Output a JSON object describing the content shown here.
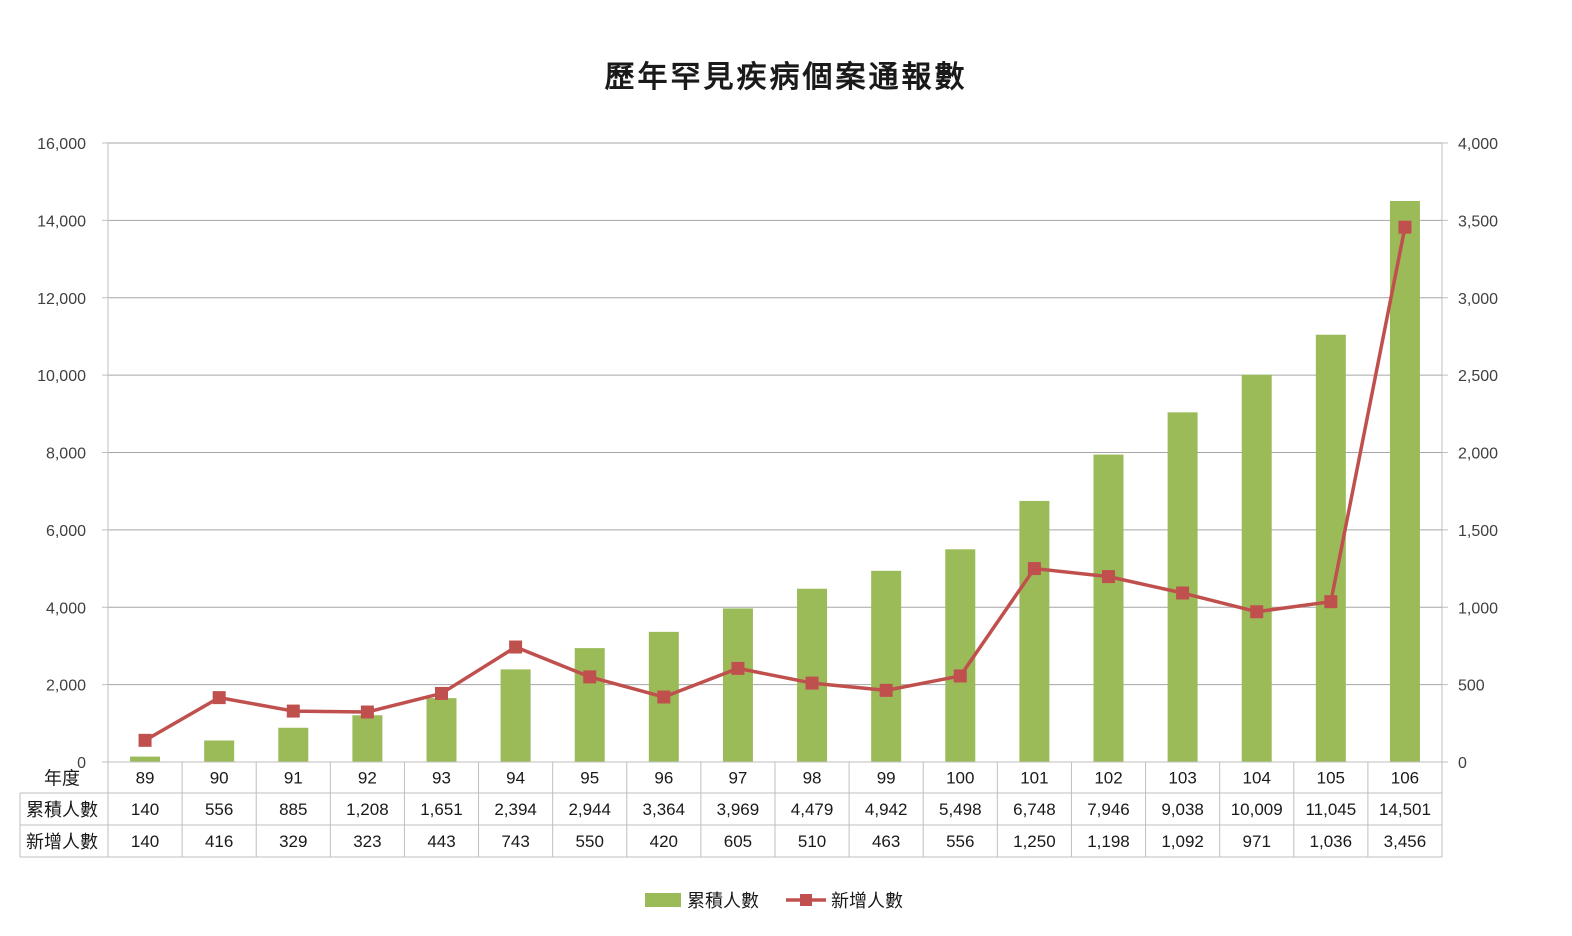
{
  "chart_data": {
    "type": "bar+line",
    "title": "歷年罕見疾病個案通報數",
    "x_header": "年度",
    "categories": [
      "89",
      "90",
      "91",
      "92",
      "93",
      "94",
      "95",
      "96",
      "97",
      "98",
      "99",
      "100",
      "101",
      "102",
      "103",
      "104",
      "105",
      "106"
    ],
    "series": [
      {
        "name": "累積人數",
        "type": "bar",
        "axis": "left",
        "color": "#9bbb59",
        "values": [
          140,
          556,
          885,
          1208,
          1651,
          2394,
          2944,
          3364,
          3969,
          4479,
          4942,
          5498,
          6748,
          7946,
          9038,
          10009,
          11045,
          14501
        ],
        "labels": [
          "140",
          "556",
          "885",
          "1,208",
          "1,651",
          "2,394",
          "2,944",
          "3,364",
          "3,969",
          "4,479",
          "4,942",
          "5,498",
          "6,748",
          "7,946",
          "9,038",
          "10,009",
          "11,045",
          "14,501"
        ]
      },
      {
        "name": "新增人數",
        "type": "line",
        "axis": "right",
        "color": "#c0504d",
        "marker": "square",
        "values": [
          140,
          416,
          329,
          323,
          443,
          743,
          550,
          420,
          605,
          510,
          463,
          556,
          1250,
          1198,
          1092,
          971,
          1036,
          3456
        ],
        "labels": [
          "140",
          "416",
          "329",
          "323",
          "443",
          "743",
          "550",
          "420",
          "605",
          "510",
          "463",
          "556",
          "1,250",
          "1,198",
          "1,092",
          "971",
          "1,036",
          "3,456"
        ]
      }
    ],
    "y_left": {
      "min": 0,
      "max": 16000,
      "ticks": [
        "0",
        "2,000",
        "4,000",
        "6,000",
        "8,000",
        "10,000",
        "12,000",
        "14,000",
        "16,000"
      ]
    },
    "y_right": {
      "min": 0,
      "max": 4000,
      "ticks": [
        "0",
        "500",
        "1,000",
        "1,500",
        "2,000",
        "2,500",
        "3,000",
        "3,500",
        "4,000"
      ]
    },
    "grid": true,
    "legend_position": "bottom",
    "data_table": true
  }
}
